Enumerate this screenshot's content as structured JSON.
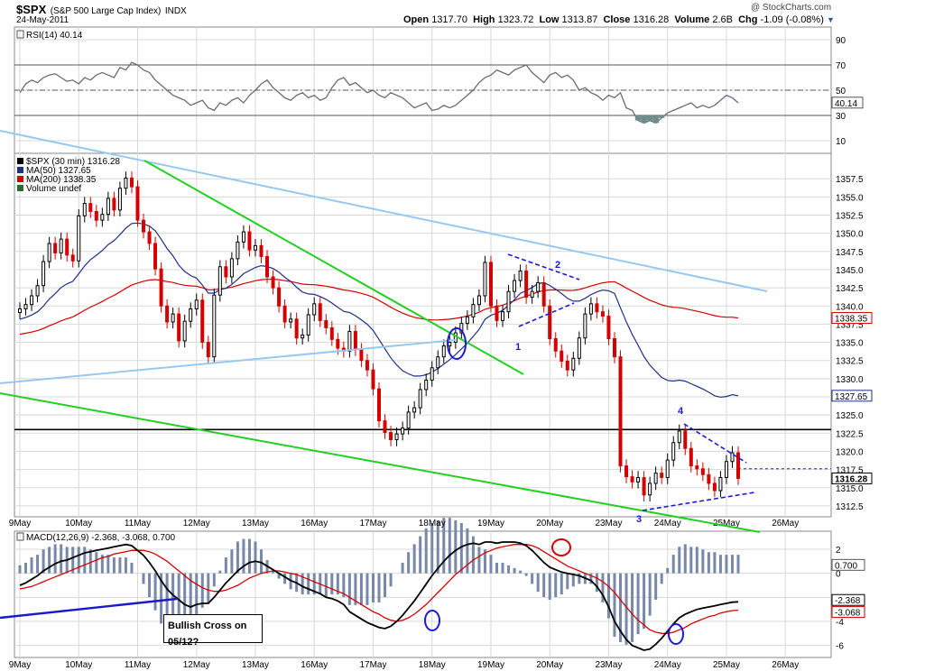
{
  "header": {
    "symbol": "$SPX",
    "name": "(S&P 500 Large Cap Index)",
    "exchange": "INDX",
    "date": "24-May-2011",
    "watermark": "@ StockCharts.com",
    "open_label": "Open",
    "open": "1317.70",
    "high_label": "High",
    "high": "1323.72",
    "low_label": "Low",
    "low": "1313.87",
    "close_label": "Close",
    "close": "1316.28",
    "volume_label": "Volume",
    "volume": "2.6B",
    "chg_label": "Chg",
    "chg": "-1.09 (-0.08%)"
  },
  "colors": {
    "up": "#000000",
    "down": "#d40000",
    "ma50": "#1c2f86",
    "ma200": "#d40000",
    "trend_green": "#22d022",
    "trend_lightblue": "#98c8f0",
    "annot_blue": "#1a1ad8",
    "grid": "#d8d8d8"
  },
  "chart_data": [
    {
      "type": "line",
      "panel": "rsi",
      "legend": "RSI(14) 40.14",
      "ylim": [
        0,
        100
      ],
      "y_ticks": [
        90,
        70,
        50,
        30,
        10
      ],
      "reference_lines": [
        70,
        50,
        30
      ],
      "current_value_label": "40.14",
      "series": [
        {
          "name": "RSI(14)",
          "values": [
            48,
            55,
            58,
            56,
            60,
            62,
            63,
            60,
            57,
            58,
            55,
            60,
            58,
            62,
            64,
            62,
            60,
            68,
            66,
            72,
            70,
            66,
            64,
            58,
            54,
            50,
            46,
            44,
            42,
            38,
            40,
            42,
            36,
            34,
            40,
            38,
            42,
            44,
            40,
            46,
            50,
            55,
            58,
            52,
            48,
            44,
            42,
            46,
            48,
            44,
            46,
            42,
            44,
            52,
            58,
            60,
            54,
            56,
            52,
            48,
            50,
            46,
            44,
            48,
            46,
            44,
            40,
            36,
            38,
            40,
            34,
            35,
            38,
            36,
            38,
            42,
            46,
            50,
            56,
            60,
            62,
            66,
            64,
            62,
            66,
            68,
            70,
            64,
            60,
            56,
            62,
            64,
            60,
            62,
            58,
            50,
            52,
            48,
            46,
            42,
            46,
            44,
            48,
            36,
            34,
            26,
            24,
            26,
            24,
            28,
            32,
            34,
            36,
            38,
            40,
            36,
            38,
            36,
            38,
            42,
            46,
            44,
            40
          ]
        }
      ]
    },
    {
      "type": "candlestick",
      "panel": "price",
      "legend": [
        "$SPX (30 min) 1316.28",
        "MA(50) 1327.65",
        "MA(200) 1338.35",
        "Volume undef"
      ],
      "ylim": [
        1311,
        1361
      ],
      "y_ticks": [
        1357.5,
        1355.0,
        1352.5,
        1350.0,
        1347.5,
        1345.0,
        1342.5,
        1340.0,
        1337.5,
        1335.0,
        1332.5,
        1330.0,
        1327.5,
        1325.0,
        1322.5,
        1320.0,
        1317.5,
        1315.0,
        1312.5
      ],
      "x_labels": [
        "9May",
        "10May",
        "11May",
        "12May",
        "13May",
        "16May",
        "17May",
        "18May",
        "19May",
        "20May",
        "23May",
        "24May",
        "25May",
        "26May"
      ],
      "value_labels": {
        "ma200": "1338.35",
        "ma50": "1327.65",
        "close": "1316.28"
      },
      "horizontal_level": 1323.0,
      "close": [
        1339.6,
        1340.2,
        1341.4,
        1342.8,
        1346.1,
        1348.6,
        1347.3,
        1349.2,
        1347.0,
        1346.2,
        1352.4,
        1354.1,
        1353.0,
        1351.8,
        1352.6,
        1354.8,
        1353.2,
        1356.2,
        1357.6,
        1356.4,
        1351.8,
        1350.2,
        1348.6,
        1345.1,
        1340.0,
        1337.8,
        1338.9,
        1335.2,
        1337.9,
        1339.6,
        1340.8,
        1335.0,
        1333.0,
        1341.5,
        1345.4,
        1344.0,
        1346.5,
        1348.8,
        1350.2,
        1347.7,
        1348.3,
        1346.8,
        1344.0,
        1342.5,
        1340.0,
        1337.8,
        1338.2,
        1335.6,
        1336.0,
        1338.8,
        1340.3,
        1338.0,
        1337.0,
        1335.4,
        1334.2,
        1333.8,
        1336.5,
        1334.0,
        1332.5,
        1331.2,
        1328.6,
        1324.2,
        1322.6,
        1321.6,
        1322.4,
        1323.2,
        1325.4,
        1326.0,
        1328.5,
        1329.8,
        1331.5,
        1333.0,
        1334.5,
        1335.0,
        1336.3,
        1337.6,
        1338.5,
        1340.2,
        1341.4,
        1346.0,
        1340.0,
        1338.0,
        1339.2,
        1342.0,
        1343.5,
        1344.8,
        1341.2,
        1342.0,
        1343.2,
        1340.0,
        1335.5,
        1333.8,
        1332.4,
        1331.2,
        1332.8,
        1335.6,
        1338.9,
        1340.3,
        1339.2,
        1338.6,
        1335.5,
        1333.0,
        1318.0,
        1316.5,
        1315.8,
        1316.4,
        1314.0,
        1315.6,
        1317.0,
        1316.4,
        1318.8,
        1321.2,
        1322.8,
        1320.4,
        1318.0,
        1317.6,
        1316.8,
        1315.6,
        1314.6,
        1316.4,
        1318.6,
        1319.8,
        1316.28
      ]
    },
    {
      "type": "line",
      "panel": "macd",
      "legend": "MACD(12,26,9) -2.368, -3.068, 0.700",
      "ylim": [
        -7,
        3.5
      ],
      "y_ticks": [
        2,
        0,
        -2,
        -4,
        -6
      ],
      "value_labels": {
        "hist": "0.700",
        "macd": "-2.368",
        "signal": "-3.068"
      },
      "series": [
        {
          "name": "MACD(12,26,9)",
          "values": [
            -1.0,
            -0.8,
            -0.5,
            -0.2,
            0.2,
            0.5,
            0.8,
            1.0,
            1.1,
            1.3,
            1.5,
            1.7,
            1.8,
            1.9,
            2.0,
            2.1,
            2.2,
            2.3,
            2.4,
            2.3,
            1.9,
            1.5,
            0.9,
            0.2,
            -0.6,
            -1.3,
            -1.8,
            -2.2,
            -2.6,
            -2.8,
            -2.6,
            -2.5,
            -2.5,
            -2.0,
            -1.4,
            -0.8,
            -0.3,
            0.2,
            0.6,
            0.9,
            1.0,
            0.9,
            0.6,
            0.3,
            0.0,
            -0.3,
            -0.6,
            -0.8,
            -1.1,
            -1.3,
            -1.5,
            -1.7,
            -2.0,
            -2.1,
            -2.3,
            -2.6,
            -3.2,
            -3.5,
            -3.8,
            -4.1,
            -4.3,
            -4.5,
            -4.6,
            -4.4,
            -4.0,
            -3.5,
            -2.9,
            -2.3,
            -1.6,
            -0.9,
            -0.2,
            0.4,
            1.0,
            1.5,
            1.9,
            2.2,
            2.4,
            2.5,
            2.4,
            2.6,
            2.6,
            2.5,
            2.6,
            2.6,
            2.6,
            2.5,
            2.3,
            1.9,
            1.4,
            0.9,
            0.5,
            0.3,
            0.1,
            0.0,
            -0.1,
            -0.2,
            -0.4,
            -0.6,
            -1.1,
            -1.8,
            -2.8,
            -4.0,
            -4.8,
            -5.5,
            -6.0,
            -6.2,
            -6.4,
            -6.3,
            -5.9,
            -5.4,
            -4.8,
            -4.2,
            -3.7,
            -3.4,
            -3.2,
            -3.0,
            -2.9,
            -2.8,
            -2.7,
            -2.6,
            -2.5,
            -2.4,
            -2.37
          ]
        },
        {
          "name": "Signal",
          "values": [
            -1.3,
            -1.2,
            -1.1,
            -0.9,
            -0.7,
            -0.5,
            -0.3,
            -0.1,
            0.1,
            0.3,
            0.5,
            0.7,
            0.9,
            1.1,
            1.3,
            1.4,
            1.6,
            1.7,
            1.8,
            1.9,
            1.9,
            1.9,
            1.8,
            1.6,
            1.3,
            1.0,
            0.6,
            0.2,
            -0.2,
            -0.6,
            -0.9,
            -1.2,
            -1.4,
            -1.5,
            -1.5,
            -1.4,
            -1.2,
            -1.0,
            -0.7,
            -0.4,
            -0.2,
            0.0,
            0.1,
            0.2,
            0.2,
            0.1,
            0.0,
            -0.1,
            -0.3,
            -0.5,
            -0.7,
            -0.9,
            -1.1,
            -1.3,
            -1.5,
            -1.7,
            -2.0,
            -2.3,
            -2.6,
            -2.9,
            -3.2,
            -3.4,
            -3.7,
            -3.9,
            -4.0,
            -3.9,
            -3.7,
            -3.4,
            -3.0,
            -2.6,
            -2.1,
            -1.6,
            -1.1,
            -0.6,
            -0.1,
            0.3,
            0.7,
            1.1,
            1.4,
            1.7,
            1.9,
            2.1,
            2.2,
            2.3,
            2.4,
            2.4,
            2.4,
            2.3,
            2.1,
            1.8,
            1.5,
            1.2,
            0.9,
            0.6,
            0.4,
            0.2,
            0.0,
            -0.2,
            -0.4,
            -0.7,
            -1.1,
            -1.6,
            -2.2,
            -2.8,
            -3.4,
            -3.9,
            -4.3,
            -4.7,
            -4.9,
            -5.0,
            -5.0,
            -4.9,
            -4.7,
            -4.5,
            -4.2,
            -4.0,
            -3.8,
            -3.6,
            -3.5,
            -3.3,
            -3.2,
            -3.1,
            -3.07
          ]
        }
      ]
    }
  ],
  "annotations": {
    "wave_1": "1",
    "wave_2": "2",
    "wave_3": "3",
    "wave_4": "4",
    "callout": "Bullish Cross on 05/12?"
  }
}
